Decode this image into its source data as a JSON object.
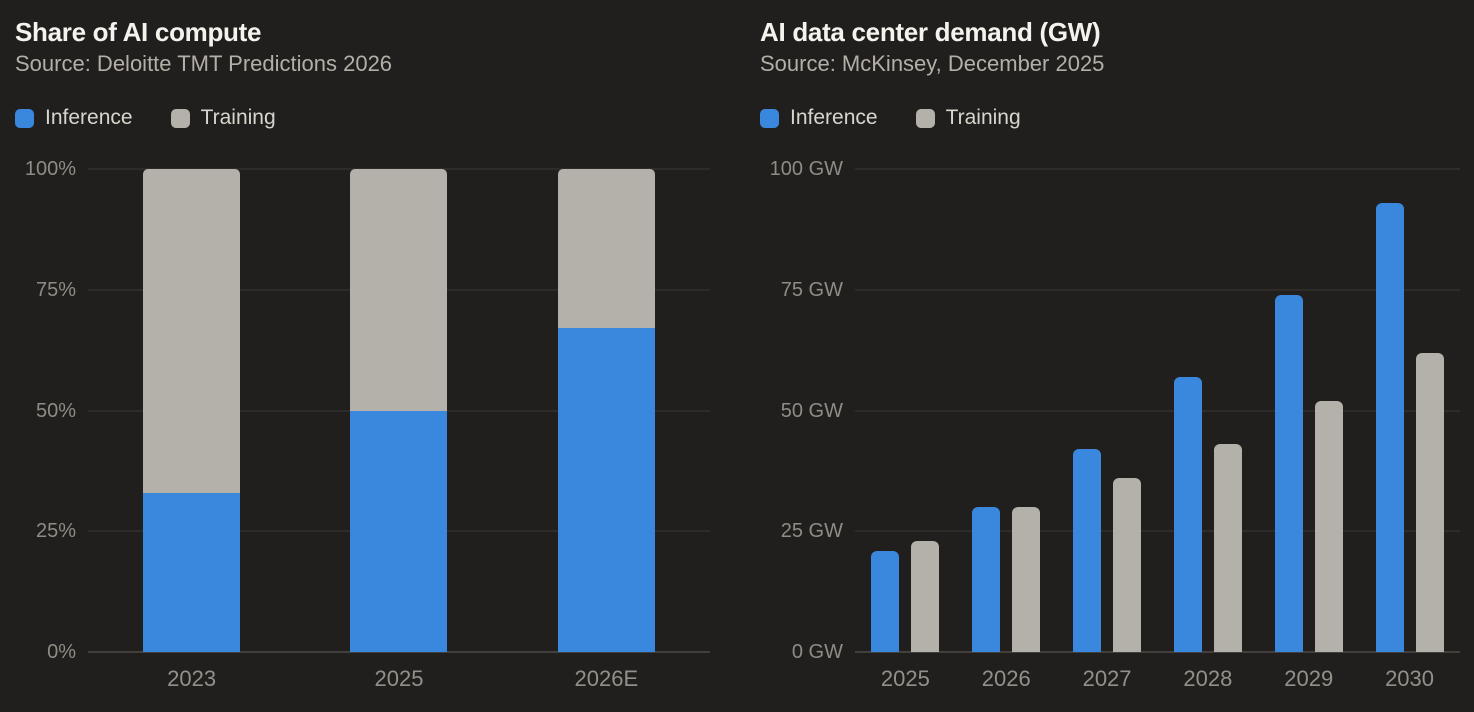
{
  "page": {
    "background": "#211f1d"
  },
  "colors": {
    "inference_blue": "#3a87de",
    "training_gray": "#b4b1aa",
    "title_text": "#f6f3ee",
    "source_text": "#b3afa8",
    "tick_text": "#8f8c85",
    "gridline": "#2e2c29",
    "baseline": "#433f3b"
  },
  "chart_data": [
    {
      "type": "bar",
      "variant": "stacked",
      "title": "Share of AI compute",
      "subtitle": "Source: Deloitte TMT Predictions 2026",
      "categories": [
        "2023",
        "2025",
        "2026E"
      ],
      "series": [
        {
          "name": "Inference",
          "color": "#3a87de",
          "values": [
            33,
            50,
            67
          ]
        },
        {
          "name": "Training",
          "color": "#b4b1aa",
          "values": [
            67,
            50,
            33
          ]
        }
      ],
      "xlabel": "",
      "ylabel": "",
      "ylim": [
        0,
        100
      ],
      "ytick_values": [
        0,
        25,
        50,
        75,
        100
      ],
      "ytick_labels": [
        "0%",
        "25%",
        "50%",
        "75%",
        "100%"
      ],
      "grid": true,
      "legend_position": "top-left"
    },
    {
      "type": "bar",
      "variant": "grouped",
      "title": "AI data center demand (GW)",
      "subtitle": "Source: McKinsey, December 2025",
      "categories": [
        "2025",
        "2026",
        "2027",
        "2028",
        "2029",
        "2030"
      ],
      "series": [
        {
          "name": "Inference",
          "color": "#3a87de",
          "values": [
            21,
            30,
            42,
            57,
            74,
            93
          ]
        },
        {
          "name": "Training",
          "color": "#b4b1aa",
          "values": [
            23,
            30,
            36,
            43,
            52,
            62
          ]
        }
      ],
      "xlabel": "",
      "ylabel": "GW",
      "ylim": [
        0,
        100
      ],
      "ytick_values": [
        0,
        25,
        50,
        75,
        100
      ],
      "ytick_labels": [
        "0 GW",
        "25 GW",
        "50 GW",
        "75 GW",
        "100 GW"
      ],
      "grid": true,
      "legend_position": "top-left"
    }
  ]
}
